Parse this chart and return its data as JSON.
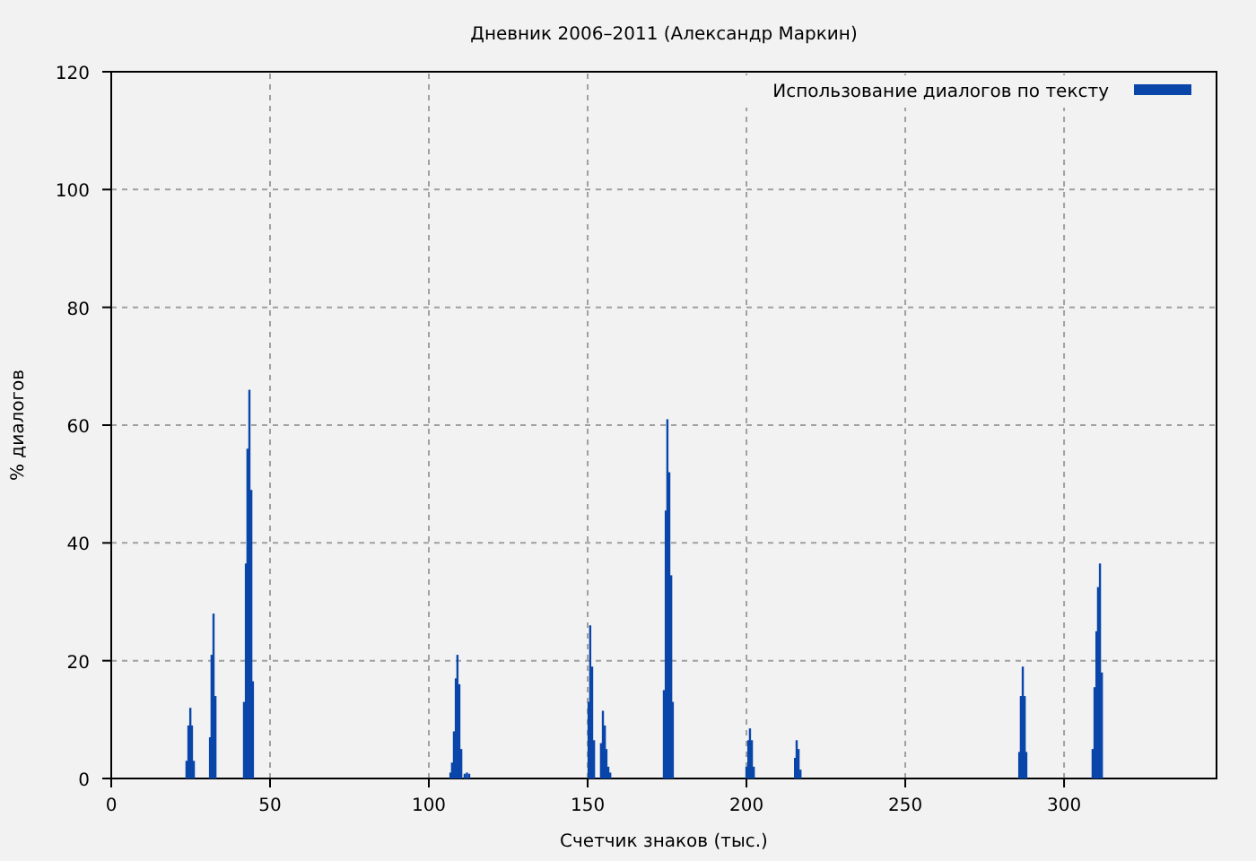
{
  "chart_data": {
    "type": "bar",
    "title": "Дневник 2006–2011 (Александр Маркин)",
    "xlabel": "Счетчик знаков (тыс.)",
    "ylabel": "% диалогов",
    "x": [
      23.7,
      24.3,
      24.9,
      25.4,
      26.0,
      31.1,
      31.6,
      32.2,
      32.8,
      41.8,
      42.4,
      42.9,
      43.5,
      44.1,
      44.6,
      106.8,
      107.3,
      107.9,
      108.5,
      109.0,
      109.6,
      110.2,
      111.3,
      112.0,
      112.7,
      150.3,
      150.8,
      151.4,
      152.0,
      154.2,
      154.8,
      155.4,
      155.9,
      156.5,
      157.1,
      174.0,
      174.6,
      175.1,
      175.7,
      176.3,
      176.8,
      200.0,
      200.6,
      201.1,
      201.7,
      202.3,
      215.3,
      215.8,
      216.4,
      217.0,
      285.9,
      286.4,
      287.0,
      287.6,
      288.1,
      309.0,
      309.6,
      310.2,
      310.7,
      311.3,
      311.9
    ],
    "series": [
      {
        "name": "Использование диалогов по тексту",
        "color": "#0a46aa",
        "values": [
          3,
          9,
          12,
          9,
          3,
          7,
          21,
          28,
          14,
          13,
          36.5,
          56,
          66,
          49,
          16.5,
          1,
          2.7,
          8,
          17,
          21,
          16,
          5,
          0.8,
          1,
          0.8,
          13,
          26,
          19,
          6.5,
          6,
          11.5,
          9,
          5,
          2,
          1,
          15,
          45.5,
          61,
          52,
          34.5,
          13,
          2,
          6.5,
          8.5,
          6.5,
          2,
          3.5,
          6.5,
          5,
          1.5,
          4.5,
          14,
          19,
          14,
          4.5,
          5,
          15.5,
          25,
          32.5,
          36.5,
          18
        ]
      }
    ],
    "xlim": [
      0,
      348
    ],
    "xticks": [
      0,
      50,
      100,
      150,
      200,
      250,
      300
    ],
    "ylim": [
      0,
      120
    ],
    "yticks": [
      0,
      20,
      40,
      60,
      80,
      100,
      120
    ],
    "grid": true,
    "legend": "top right"
  }
}
